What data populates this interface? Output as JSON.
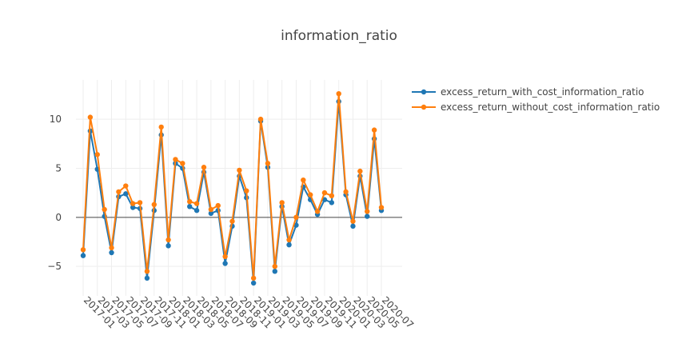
{
  "chart_data": {
    "type": "line",
    "title": "information_ratio",
    "xlabel": "",
    "ylabel": "",
    "ylim": [
      -8,
      14
    ],
    "yticks": [
      -5,
      0,
      5,
      10
    ],
    "x": [
      "2017-01",
      "2017-02",
      "2017-03",
      "2017-04",
      "2017-05",
      "2017-06",
      "2017-07",
      "2017-08",
      "2017-09",
      "2017-10",
      "2017-11",
      "2017-12",
      "2018-01",
      "2018-02",
      "2018-03",
      "2018-04",
      "2018-05",
      "2018-06",
      "2018-07",
      "2018-08",
      "2018-09",
      "2018-10",
      "2018-11",
      "2018-12",
      "2019-01",
      "2019-02",
      "2019-03",
      "2019-04",
      "2019-05",
      "2019-06",
      "2019-07",
      "2019-08",
      "2019-09",
      "2019-10",
      "2019-11",
      "2019-12",
      "2020-01",
      "2020-02",
      "2020-03",
      "2020-04",
      "2020-05",
      "2020-06",
      "2020-07"
    ],
    "xticks": [
      "2017-01",
      "2017-03",
      "2017-05",
      "2017-07",
      "2017-09",
      "2017-11",
      "2018-01",
      "2018-03",
      "2018-05",
      "2018-07",
      "2018-09",
      "2018-11",
      "2019-01",
      "2019-03",
      "2019-05",
      "2019-07",
      "2019-09",
      "2019-11",
      "2020-01",
      "2020-03",
      "2020-05",
      "2020-07"
    ],
    "grid": true,
    "legend_position": "top-right",
    "series": [
      {
        "name": "excess_return_with_cost_information_ratio",
        "color": "#1f77b4",
        "values": [
          -3.9,
          8.8,
          4.9,
          0.1,
          -3.6,
          2.1,
          2.4,
          1.0,
          0.9,
          -6.2,
          0.7,
          8.4,
          -2.9,
          5.5,
          5.0,
          1.1,
          0.7,
          4.6,
          0.4,
          0.7,
          -4.7,
          -0.9,
          4.2,
          2.0,
          -6.7,
          9.8,
          5.1,
          -5.5,
          1.1,
          -2.8,
          -0.8,
          3.1,
          1.8,
          0.3,
          1.8,
          1.5,
          11.8,
          2.3,
          -0.9,
          4.2,
          0.1,
          8.0,
          0.7
        ]
      },
      {
        "name": "excess_return_without_cost_information_ratio",
        "color": "#ff7f0e",
        "values": [
          -3.3,
          10.2,
          6.4,
          0.8,
          -3.1,
          2.6,
          3.2,
          1.4,
          1.5,
          -5.5,
          1.3,
          9.2,
          -2.3,
          5.9,
          5.5,
          1.6,
          1.4,
          5.1,
          0.8,
          1.2,
          -4.0,
          -0.4,
          4.8,
          2.7,
          -6.2,
          10.0,
          5.5,
          -5.0,
          1.5,
          -2.3,
          0.0,
          3.8,
          2.3,
          0.6,
          2.5,
          2.2,
          12.6,
          2.6,
          -0.4,
          4.7,
          0.6,
          8.9,
          1.0
        ]
      }
    ]
  }
}
